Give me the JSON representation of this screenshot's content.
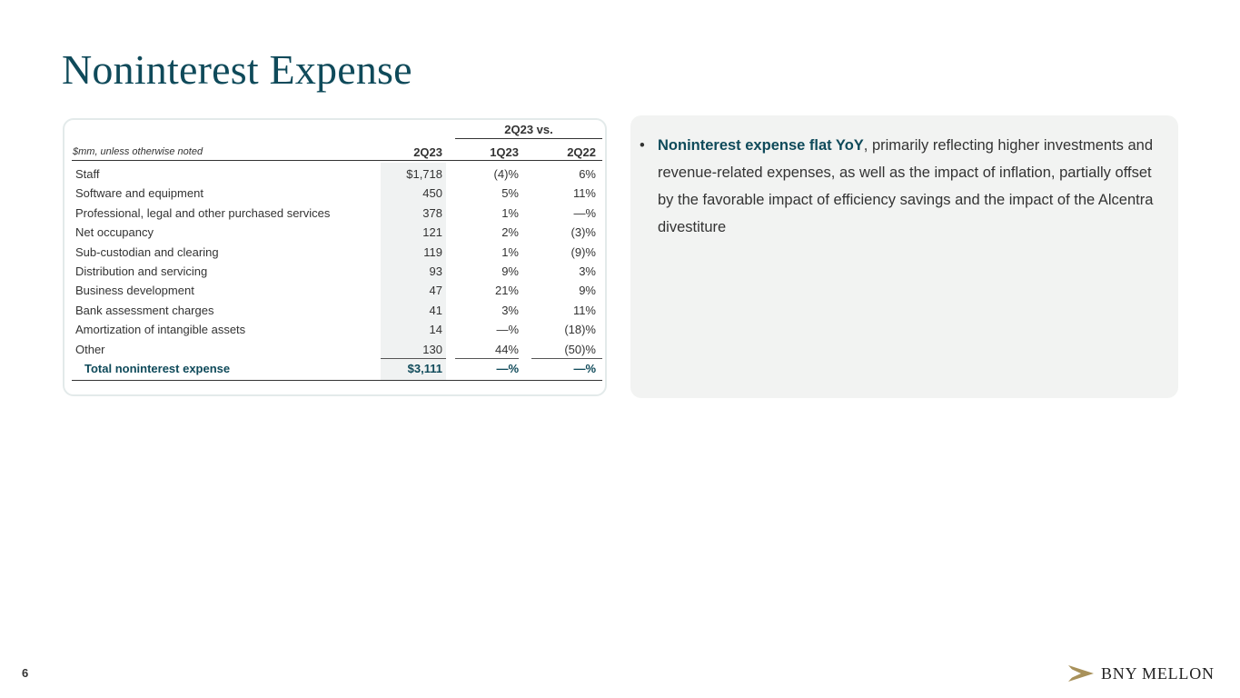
{
  "page": {
    "title": "Noninterest Expense",
    "page_number": "6"
  },
  "table": {
    "group_header": "2Q23 vs.",
    "units_label": "$mm, unless otherwise noted",
    "columns": [
      "2Q23",
      "1Q23",
      "2Q22"
    ],
    "rows": [
      {
        "name": "Staff",
        "v": "$1,718",
        "q": "(4)%",
        "y": "6%"
      },
      {
        "name": "Software and equipment",
        "v": "450",
        "q": "5%",
        "y": "11%"
      },
      {
        "name": "Professional, legal and other purchased services",
        "v": "378",
        "q": "1%",
        "y": "—%"
      },
      {
        "name": "Net occupancy",
        "v": "121",
        "q": "2%",
        "y": "(3)%"
      },
      {
        "name": "Sub-custodian and clearing",
        "v": "119",
        "q": "1%",
        "y": "(9)%"
      },
      {
        "name": "Distribution and servicing",
        "v": "93",
        "q": "9%",
        "y": "3%"
      },
      {
        "name": "Business development",
        "v": "47",
        "q": "21%",
        "y": "9%"
      },
      {
        "name": "Bank assessment charges",
        "v": "41",
        "q": "3%",
        "y": "11%"
      },
      {
        "name": "Amortization of intangible assets",
        "v": "14",
        "q": "—%",
        "y": "(18)%"
      },
      {
        "name": "Other",
        "v": "130",
        "q": "44%",
        "y": "(50)%"
      }
    ],
    "total": {
      "name": "Total noninterest expense",
      "v": "$3,111",
      "q": "—%",
      "y": "—%"
    }
  },
  "commentary": {
    "bullet_symbol": "•",
    "bold_lead": "Noninterest expense flat YoY",
    "text": ", primarily reflecting higher investments and revenue-related expenses, as well as the impact of inflation, partially offset by the favorable impact of efficiency savings and the impact of the Alcentra divestiture"
  },
  "logo": {
    "text": "BNY MELLON",
    "icon": "bny-mellon-logo-icon",
    "color": "#a8915a"
  }
}
